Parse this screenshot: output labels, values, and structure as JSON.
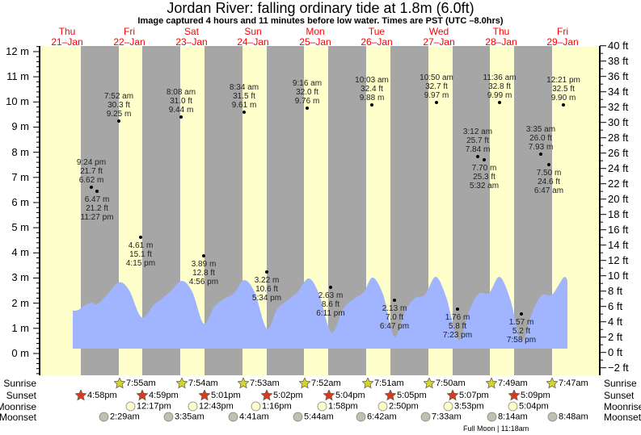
{
  "title": "Jordan River: falling  ordinary tide at 1.8m (6.0ft)",
  "subtitle": "Image captured 4 hours and 11 minutes before low water. Times are PST (UTC –8.0hrs)",
  "days": [
    {
      "dow": "Thu",
      "date": "21–Jan"
    },
    {
      "dow": "Fri",
      "date": "22–Jan"
    },
    {
      "dow": "Sat",
      "date": "23–Jan"
    },
    {
      "dow": "Sun",
      "date": "24–Jan"
    },
    {
      "dow": "Mon",
      "date": "25–Jan"
    },
    {
      "dow": "Tue",
      "date": "26–Jan"
    },
    {
      "dow": "Wed",
      "date": "27–Jan"
    },
    {
      "dow": "Thu",
      "date": "28–Jan"
    },
    {
      "dow": "Fri",
      "date": "29–Jan"
    }
  ],
  "axis_left": [
    "12 m",
    "11 m",
    "10 m",
    "9 m",
    "8 m",
    "7 m",
    "6 m",
    "5 m",
    "4 m",
    "3 m",
    "2 m",
    "1 m",
    "0 m"
  ],
  "axis_right": [
    "40 ft",
    "38 ft",
    "36 ft",
    "34 ft",
    "32 ft",
    "30 ft",
    "28 ft",
    "26 ft",
    "24 ft",
    "22 ft",
    "20 ft",
    "18 ft",
    "16 ft",
    "14 ft",
    "12 ft",
    "10 ft",
    "8 ft",
    "6 ft",
    "4 ft",
    "2 ft",
    "0 ft",
    "−2 ft"
  ],
  "colors": {
    "day": "#ffffcc",
    "night": "#a6a6a6",
    "water": "#a0b4ff",
    "day_label": "#ff0000",
    "sunrise": "#d4d42a",
    "sunset": "#d93a1e",
    "moonrise": "#ffffcc",
    "moonset": "#c0c0b0"
  },
  "tides": [
    {
      "time": "9:24 pm",
      "ft": "21.7 ft",
      "m": "6.62 m"
    },
    {
      "time": "11:27 pm",
      "ft": "21.2 ft",
      "m": "6.47 m"
    },
    {
      "time": "7:52 am",
      "ft": "30.3 ft",
      "m": "9.25 m"
    },
    {
      "time": "4:15 pm",
      "ft": "15.1 ft",
      "m": "4.61 m"
    },
    {
      "time": "8:08 am",
      "ft": "31.0 ft",
      "m": "9.44 m"
    },
    {
      "time": "4:56 pm",
      "ft": "12.8 ft",
      "m": "3.89 m"
    },
    {
      "time": "8:34 am",
      "ft": "31.5 ft",
      "m": "9.61 m"
    },
    {
      "time": "5:34 pm",
      "ft": "10.6 ft",
      "m": "3.22 m"
    },
    {
      "time": "9:16 am",
      "ft": "32.0 ft",
      "m": "9.76 m"
    },
    {
      "time": "6:11 pm",
      "ft": "8.6 ft",
      "m": "2.63 m"
    },
    {
      "time": "10:03 am",
      "ft": "32.4 ft",
      "m": "9.88 m"
    },
    {
      "time": "6:47 pm",
      "ft": "7.0 ft",
      "m": "2.13 m"
    },
    {
      "time": "3:12 am",
      "ft": "25.7 ft",
      "m": "7.84 m"
    },
    {
      "time": "5:32 am",
      "ft": "25.3 ft",
      "m": "7.70 m"
    },
    {
      "time": "10:50 am",
      "ft": "32.7 ft",
      "m": "9.97 m"
    },
    {
      "time": "7:23 pm",
      "ft": "5.8 ft",
      "m": "1.76 m"
    },
    {
      "time": "3:35 am",
      "ft": "26.0 ft",
      "m": "7.93 m"
    },
    {
      "time": "6:47 am",
      "ft": "24.6 ft",
      "m": "7.50 m"
    },
    {
      "time": "11:36 am",
      "ft": "32.8 ft",
      "m": "9.99 m"
    },
    {
      "time": "7:58 pm",
      "ft": "5.2 ft",
      "m": "1.57 m"
    },
    {
      "time": "12:21 pm",
      "ft": "32.5 ft",
      "m": "9.90 m"
    }
  ],
  "rows": {
    "sunrise": "Sunrise",
    "sunset": "Sunset",
    "moonrise": "Moonrise",
    "moonset": "Moonset"
  },
  "sunrise": [
    "7:55am",
    "7:54am",
    "7:53am",
    "7:52am",
    "7:51am",
    "7:50am",
    "7:49am",
    "7:47am"
  ],
  "sunset": [
    "4:58pm",
    "4:59pm",
    "5:01pm",
    "5:02pm",
    "5:04pm",
    "5:05pm",
    "5:07pm",
    "5:09pm"
  ],
  "moonrise": [
    "12:17pm",
    "12:43pm",
    "1:16pm",
    "1:58pm",
    "2:50pm",
    "3:53pm",
    "5:04pm"
  ],
  "moonset": [
    "2:29am",
    "3:35am",
    "4:41am",
    "5:44am",
    "6:42am",
    "7:33am",
    "8:14am",
    "8:48am"
  ],
  "full_moon": "Full Moon | 11:18am"
}
